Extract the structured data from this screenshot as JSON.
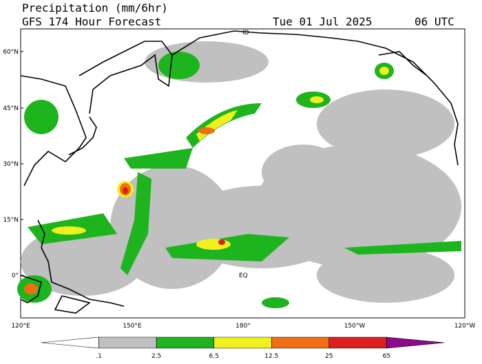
{
  "header": {
    "title": "Precipitation (mm/6hr)",
    "subtitle": "GFS 174 Hour Forecast",
    "date": "Tue 01 Jul 2025",
    "time": "06 UTC"
  },
  "map": {
    "lat_labels": [
      "60°N",
      "45°N",
      "30°N",
      "15°N",
      "0°"
    ],
    "lon_labels": [
      "120°E",
      "150°E",
      "180°",
      "150°W",
      "120°W"
    ],
    "annotations": [
      "ID",
      "EQ"
    ]
  },
  "colorbar": {
    "colors": [
      "#ffffff",
      "#c0c0c0",
      "#1eb41e",
      "#f0f01e",
      "#f06e14",
      "#dc1e1e",
      "#8c0a8c"
    ],
    "labels": [
      ".1",
      "2.5",
      "6.5",
      "12.5",
      "25",
      "65"
    ]
  }
}
